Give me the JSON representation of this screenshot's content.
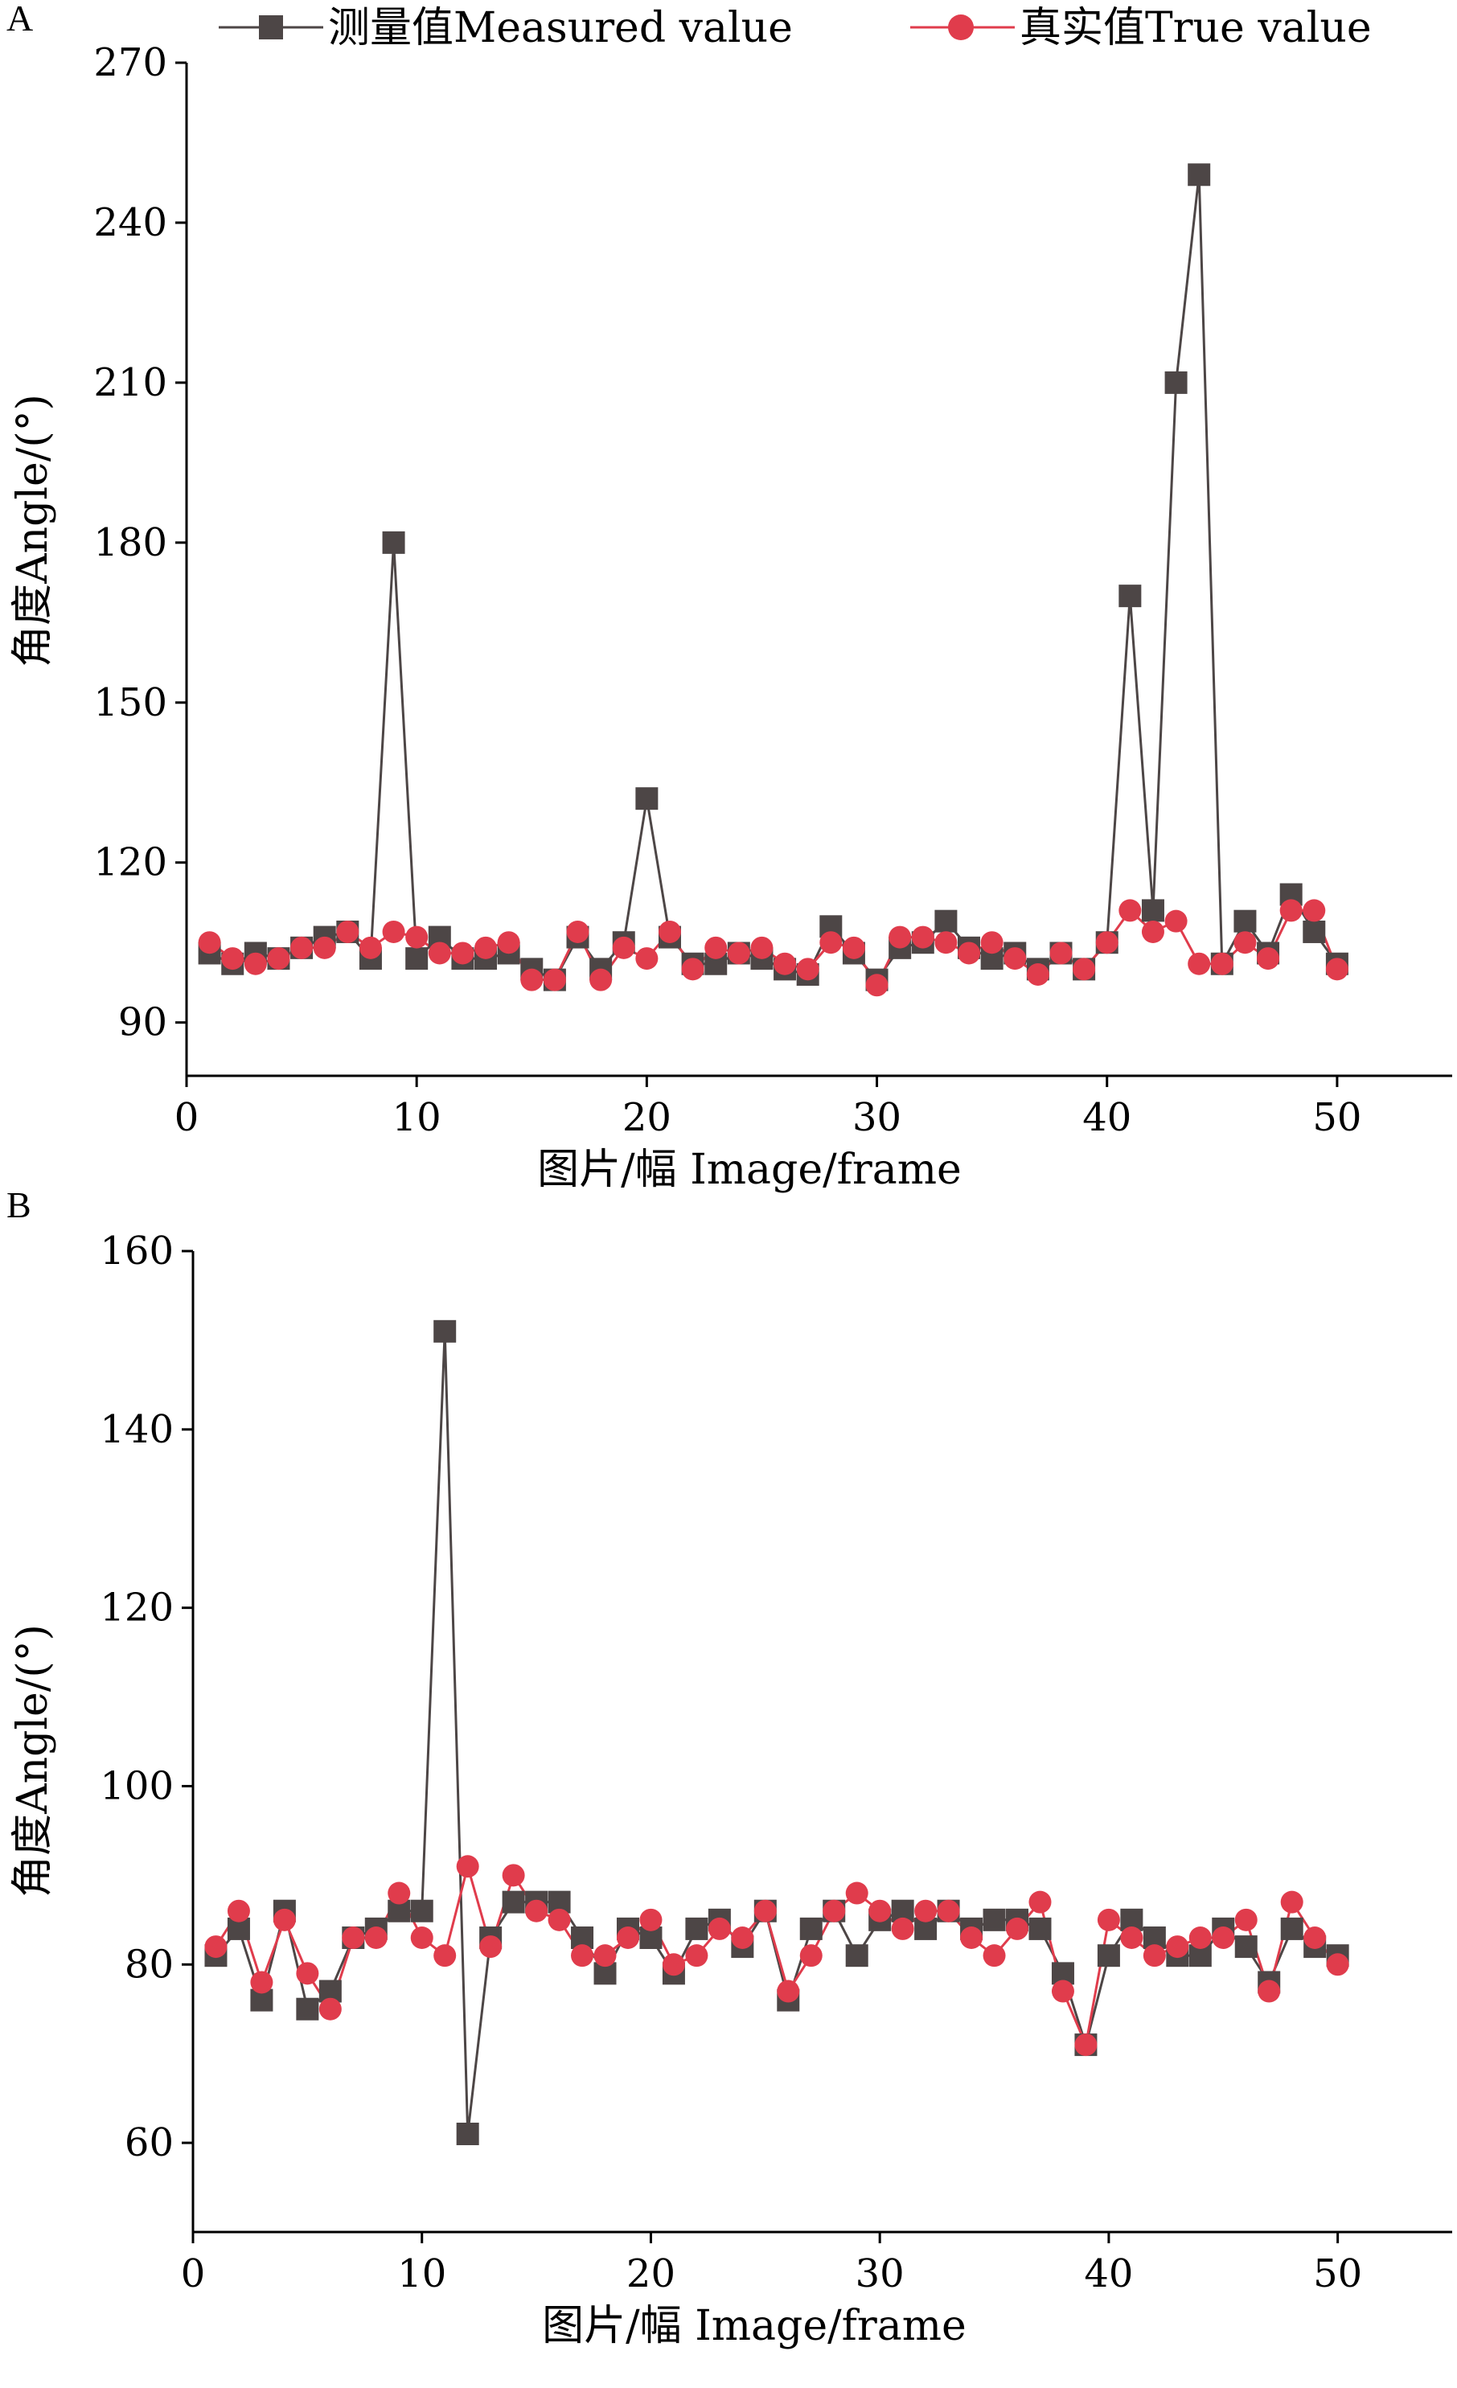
{
  "chart_data": [
    {
      "panel": "A",
      "type": "line",
      "xlabel": "图片/幅  Image/frame",
      "ylabel": "角度Angle/(°)",
      "xlim": [
        0,
        55
      ],
      "ylim": [
        80,
        270
      ],
      "xticks": [
        0,
        10,
        20,
        30,
        40,
        50
      ],
      "yticks": [
        90,
        120,
        150,
        180,
        210,
        240,
        270
      ],
      "legend": "top",
      "x": [
        1,
        2,
        3,
        4,
        5,
        6,
        7,
        8,
        9,
        10,
        11,
        12,
        13,
        14,
        15,
        16,
        17,
        18,
        19,
        20,
        21,
        22,
        23,
        24,
        25,
        26,
        27,
        28,
        29,
        30,
        31,
        32,
        33,
        34,
        35,
        36,
        37,
        38,
        39,
        40,
        41,
        42,
        43,
        44,
        45,
        46,
        47,
        48,
        49,
        50
      ],
      "series": [
        {
          "name": "测量值Measured value",
          "marker": "square",
          "color": "#4d4646",
          "values": [
            103,
            101,
            103,
            102,
            104,
            106,
            107,
            102,
            180,
            102,
            106,
            102,
            102,
            103,
            100,
            98,
            106,
            100,
            105,
            132,
            106,
            101,
            101,
            103,
            102,
            100,
            99,
            108,
            103,
            98,
            104,
            105,
            109,
            104,
            102,
            103,
            100,
            103,
            100,
            105,
            170,
            111,
            210,
            249,
            101,
            109,
            103,
            114,
            107,
            101
          ]
        },
        {
          "name": "真实值True value",
          "marker": "circle",
          "color": "#e03c4c",
          "values": [
            105,
            102,
            101,
            102,
            104,
            104,
            107,
            104,
            107,
            106,
            103,
            103,
            104,
            105,
            98,
            98,
            107,
            98,
            104,
            102,
            107,
            100,
            104,
            103,
            104,
            101,
            100,
            105,
            104,
            97,
            106,
            106,
            105,
            103,
            105,
            102,
            99,
            103,
            100,
            105,
            111,
            107,
            109,
            101,
            101,
            105,
            102,
            111,
            111,
            100
          ]
        }
      ]
    },
    {
      "panel": "B",
      "type": "line",
      "xlabel": "图片/幅  Image/frame",
      "ylabel": "角度Angle/(°)",
      "xlim": [
        0,
        55
      ],
      "ylim": [
        50,
        160
      ],
      "xticks": [
        0,
        10,
        20,
        30,
        40,
        50
      ],
      "yticks": [
        60,
        80,
        100,
        120,
        140,
        160
      ],
      "x": [
        1,
        2,
        3,
        4,
        5,
        6,
        7,
        8,
        9,
        10,
        11,
        12,
        13,
        14,
        15,
        16,
        17,
        18,
        19,
        20,
        21,
        22,
        23,
        24,
        25,
        26,
        27,
        28,
        29,
        30,
        31,
        32,
        33,
        34,
        35,
        36,
        37,
        38,
        39,
        40,
        41,
        42,
        43,
        44,
        45,
        46,
        47,
        48,
        49,
        50
      ],
      "series": [
        {
          "name": "测量值Measured value",
          "marker": "square",
          "color": "#4d4646",
          "values": [
            81,
            84,
            76,
            86,
            75,
            77,
            83,
            84,
            86,
            86,
            151,
            61,
            83,
            87,
            87,
            87,
            83,
            79,
            84,
            83,
            79,
            84,
            85,
            82,
            86,
            76,
            84,
            86,
            81,
            85,
            86,
            84,
            86,
            84,
            85,
            85,
            84,
            79,
            71,
            81,
            85,
            83,
            81,
            81,
            84,
            82,
            78,
            84,
            82,
            81
          ]
        },
        {
          "name": "真实值True value",
          "marker": "circle",
          "color": "#e03c4c",
          "values": [
            82,
            86,
            78,
            85,
            79,
            75,
            83,
            83,
            88,
            83,
            81,
            91,
            82,
            90,
            86,
            85,
            81,
            81,
            83,
            85,
            80,
            81,
            84,
            83,
            86,
            77,
            81,
            86,
            88,
            86,
            84,
            86,
            86,
            83,
            81,
            84,
            87,
            77,
            71,
            85,
            83,
            81,
            82,
            83,
            83,
            85,
            77,
            87,
            83,
            80
          ]
        }
      ]
    }
  ]
}
